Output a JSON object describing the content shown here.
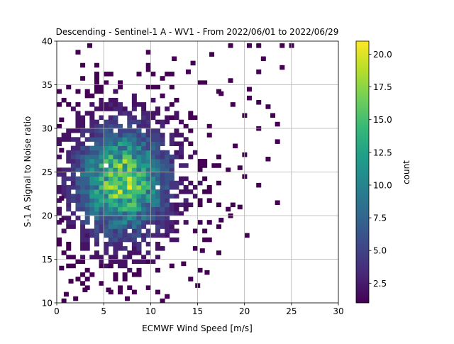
{
  "chart_data": {
    "type": "heatmap",
    "title": "Descending - Sentinel-1 A - WV1 - From 2022/06/01 to 2022/06/29",
    "xlabel": "ECMWF Wind Speed [m/s]",
    "ylabel": "S-1 A Signal to Noise ratio",
    "xlim": [
      0,
      30
    ],
    "ylim": [
      10,
      40
    ],
    "x_ticks": [
      0,
      5,
      10,
      15,
      20,
      25,
      30
    ],
    "y_ticks": [
      10,
      15,
      20,
      25,
      30,
      35,
      40
    ],
    "x_tick_labels": [
      "0",
      "5",
      "10",
      "15",
      "20",
      "25",
      "30"
    ],
    "y_tick_labels": [
      "10",
      "15",
      "20",
      "25",
      "30",
      "35",
      "40"
    ],
    "grid": true,
    "colormap": "viridis",
    "bin_size": {
      "x": 0.5,
      "y": 0.5
    },
    "colorbar": {
      "label": "count",
      "range": [
        1,
        21
      ],
      "ticks": [
        2.5,
        5.0,
        7.5,
        10.0,
        12.5,
        15.0,
        17.5,
        20.0
      ],
      "tick_labels": [
        "2.5",
        "5.0",
        "7.5",
        "10.0",
        "12.5",
        "15.0",
        "17.5",
        "20.0"
      ]
    },
    "density_peak": {
      "x": 7,
      "y": 24,
      "count": 21
    },
    "outlier_cells": [
      [
        3.5,
        39.5
      ],
      [
        16.5,
        38.5
      ],
      [
        18.5,
        39.5
      ],
      [
        20.5,
        39.5
      ],
      [
        21.5,
        39.5
      ],
      [
        24.0,
        39.5
      ],
      [
        25.0,
        39.5
      ],
      [
        22.0,
        38.0
      ],
      [
        24.0,
        37.0
      ],
      [
        21.5,
        36.5
      ],
      [
        20.5,
        34.5
      ],
      [
        22.5,
        32.5
      ],
      [
        23.0,
        31.5
      ],
      [
        21.5,
        33.0
      ],
      [
        23.5,
        30.5
      ],
      [
        20.0,
        31.5
      ],
      [
        21.5,
        30.0
      ],
      [
        23.5,
        28.5
      ],
      [
        21.5,
        23.5
      ],
      [
        20.0,
        24.5
      ],
      [
        23.5,
        21.5
      ],
      [
        22.5,
        26.5
      ],
      [
        15.0,
        12.0
      ],
      [
        16.0,
        13.5
      ],
      [
        13.5,
        14.5
      ],
      [
        15.5,
        16.0
      ],
      [
        7.5,
        10.5
      ],
      [
        5.5,
        11.5
      ],
      [
        3.0,
        11.5
      ],
      [
        2.0,
        10.5
      ],
      [
        1.0,
        11.0
      ],
      [
        1.5,
        12.5
      ],
      [
        0.5,
        14.0
      ],
      [
        0.5,
        31.0
      ],
      [
        0.5,
        27.5
      ],
      [
        0.5,
        22.0
      ],
      [
        0.5,
        19.5
      ],
      [
        19.5,
        21.0
      ],
      [
        18.5,
        20.0
      ],
      [
        17.5,
        19.5
      ],
      [
        12.5,
        38.0
      ],
      [
        14.0,
        36.5
      ],
      [
        14.5,
        37.5
      ],
      [
        19.0,
        28.0
      ],
      [
        20.0,
        27.0
      ],
      [
        19.5,
        25.5
      ],
      [
        20.5,
        33.5
      ],
      [
        18.5,
        35.5
      ],
      [
        17.5,
        34.0
      ]
    ]
  },
  "colors": {
    "grid": "#b0b0b0",
    "axes": "#000000",
    "viridis_stops": [
      "#440154",
      "#482878",
      "#3e4989",
      "#31688e",
      "#26828e",
      "#1f9e89",
      "#35b779",
      "#6ece58",
      "#b5de2b",
      "#fde725"
    ]
  }
}
